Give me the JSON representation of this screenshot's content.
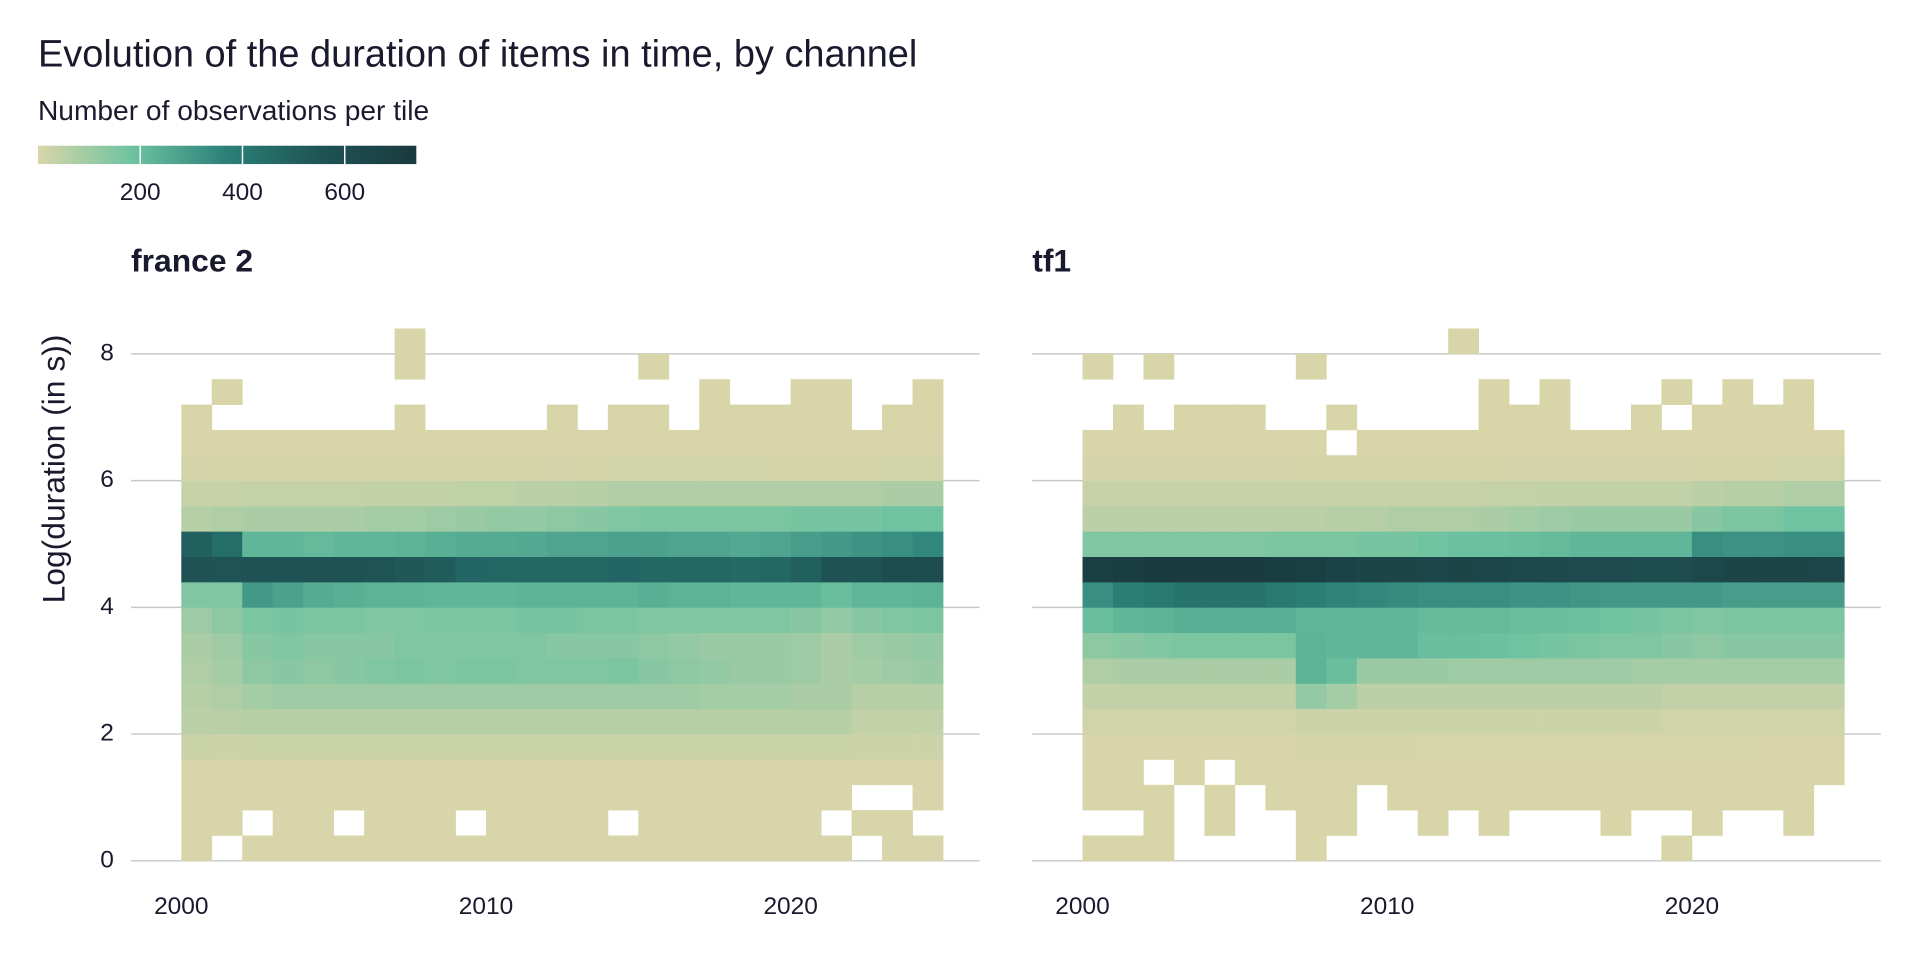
{
  "chart_data": {
    "type": "heatmap",
    "title": "Evolution of the duration of items in time, by channel",
    "legend_title": "Number of observations per tile",
    "color_scale": {
      "colors": [
        "#d9d5a9",
        "#6dc3a0",
        "#2a8078",
        "#1f5356",
        "#193a3e"
      ],
      "clim": [
        0,
        740
      ],
      "ticks": [
        200,
        400,
        600
      ]
    },
    "y_label": "Log(duration (in s))",
    "xlim": [
      1998.35,
      2026.2
    ],
    "xticks": [
      2000,
      2010,
      2020
    ],
    "ylim": [
      0,
      8.5
    ],
    "yticks": [
      0,
      2,
      4,
      6,
      8
    ],
    "grid": true,
    "x_bins": [
      2000,
      2001,
      2002,
      2003,
      2004,
      2005,
      2006,
      2007,
      2008,
      2009,
      2010,
      2011,
      2012,
      2013,
      2014,
      2015,
      2016,
      2017,
      2018,
      2019,
      2020,
      2021,
      2022,
      2023,
      2024,
      2025
    ],
    "y_bins": [
      0,
      0.4,
      0.8,
      1.2,
      1.6,
      2,
      2.4,
      2.8,
      3.2,
      3.6,
      4,
      4.4,
      4.8,
      5.2,
      5.6,
      6,
      6.4,
      6.8,
      7.2,
      7.6,
      8,
      8.4
    ],
    "facets": [
      {
        "name": "france 2",
        "z": [
          [
            3,
            null,
            3,
            3,
            3,
            3,
            3,
            3,
            3,
            3,
            3,
            3,
            3,
            3,
            3,
            3,
            3,
            3,
            3,
            3,
            3,
            3,
            null,
            3,
            3
          ],
          [
            3,
            3,
            null,
            3,
            3,
            null,
            3,
            3,
            3,
            null,
            3,
            3,
            3,
            3,
            null,
            3,
            3,
            3,
            3,
            3,
            3,
            null,
            3,
            3,
            null
          ],
          [
            3,
            3,
            3,
            3,
            3,
            3,
            3,
            3,
            3,
            3,
            3,
            3,
            3,
            3,
            3,
            3,
            3,
            3,
            3,
            3,
            3,
            3,
            null,
            null,
            3
          ],
          [
            4,
            4,
            4,
            4,
            4,
            4,
            4,
            4,
            4,
            4,
            4,
            4,
            4,
            4,
            4,
            4,
            4,
            4,
            4,
            4,
            4,
            4,
            4,
            4,
            4
          ],
          [
            25,
            20,
            25,
            25,
            25,
            25,
            25,
            25,
            25,
            25,
            25,
            25,
            25,
            25,
            25,
            25,
            25,
            25,
            25,
            25,
            25,
            25,
            20,
            20,
            20
          ],
          [
            50,
            55,
            60,
            60,
            60,
            60,
            60,
            60,
            60,
            60,
            60,
            60,
            60,
            60,
            60,
            60,
            60,
            60,
            60,
            60,
            60,
            60,
            40,
            40,
            40
          ],
          [
            60,
            70,
            90,
            100,
            100,
            100,
            100,
            100,
            100,
            100,
            100,
            100,
            100,
            100,
            100,
            100,
            100,
            90,
            90,
            90,
            80,
            80,
            60,
            60,
            60
          ],
          [
            70,
            90,
            130,
            140,
            130,
            140,
            150,
            160,
            150,
            160,
            160,
            150,
            150,
            150,
            160,
            140,
            130,
            120,
            110,
            110,
            100,
            80,
            90,
            100,
            110
          ],
          [
            80,
            100,
            140,
            150,
            140,
            140,
            140,
            150,
            150,
            150,
            150,
            150,
            140,
            140,
            140,
            130,
            120,
            110,
            110,
            110,
            100,
            80,
            100,
            110,
            120
          ],
          [
            100,
            130,
            160,
            170,
            160,
            160,
            150,
            150,
            160,
            160,
            160,
            170,
            170,
            160,
            160,
            150,
            150,
            150,
            150,
            150,
            140,
            120,
            140,
            150,
            160
          ],
          [
            150,
            150,
            300,
            280,
            250,
            240,
            230,
            230,
            220,
            220,
            220,
            230,
            230,
            230,
            230,
            240,
            230,
            230,
            220,
            220,
            220,
            200,
            220,
            220,
            230
          ],
          [
            560,
            550,
            560,
            560,
            560,
            560,
            550,
            540,
            520,
            480,
            470,
            470,
            470,
            470,
            480,
            470,
            470,
            470,
            460,
            470,
            500,
            560,
            560,
            600,
            600
          ],
          [
            500,
            450,
            220,
            220,
            210,
            220,
            220,
            230,
            240,
            250,
            250,
            260,
            270,
            270,
            280,
            280,
            270,
            270,
            260,
            270,
            290,
            300,
            320,
            330,
            350
          ],
          [
            60,
            70,
            80,
            80,
            80,
            80,
            90,
            90,
            100,
            110,
            120,
            120,
            130,
            140,
            150,
            160,
            160,
            160,
            160,
            160,
            170,
            170,
            170,
            180,
            180
          ],
          [
            30,
            30,
            35,
            35,
            35,
            35,
            40,
            40,
            40,
            45,
            45,
            50,
            55,
            60,
            70,
            70,
            70,
            70,
            70,
            70,
            70,
            70,
            70,
            80,
            80
          ],
          [
            10,
            8,
            8,
            8,
            6,
            6,
            6,
            6,
            6,
            6,
            8,
            8,
            10,
            12,
            14,
            14,
            14,
            14,
            14,
            12,
            12,
            12,
            12,
            14,
            14
          ],
          [
            3,
            3,
            2,
            1,
            2,
            1,
            1,
            1,
            1,
            1,
            2,
            2,
            2,
            3,
            3,
            3,
            3,
            3,
            3,
            3,
            2,
            2,
            3,
            3,
            3
          ],
          [
            1,
            null,
            null,
            null,
            null,
            null,
            null,
            1,
            null,
            null,
            null,
            null,
            1,
            null,
            1,
            1,
            null,
            1,
            1,
            1,
            1,
            1,
            null,
            1,
            1
          ],
          [
            null,
            1,
            null,
            null,
            null,
            null,
            null,
            null,
            null,
            null,
            null,
            null,
            null,
            null,
            null,
            null,
            null,
            1,
            null,
            null,
            1,
            1,
            null,
            null,
            1
          ],
          [
            null,
            null,
            null,
            null,
            null,
            null,
            null,
            1,
            null,
            null,
            null,
            null,
            null,
            null,
            null,
            1,
            null,
            null,
            null,
            null,
            null,
            null,
            null,
            null,
            null
          ],
          [
            null,
            null,
            null,
            null,
            null,
            null,
            null,
            1,
            null,
            null,
            null,
            null,
            null,
            null,
            null,
            null,
            null,
            null,
            null,
            null,
            null,
            null,
            null,
            null,
            null
          ]
        ]
      },
      {
        "name": "tf1",
        "z": [
          [
            2,
            2,
            2,
            null,
            null,
            null,
            null,
            2,
            null,
            null,
            null,
            null,
            null,
            null,
            null,
            null,
            null,
            null,
            null,
            1,
            null,
            null,
            null,
            null,
            null
          ],
          [
            null,
            null,
            1,
            null,
            1,
            null,
            null,
            1,
            1,
            null,
            null,
            1,
            null,
            1,
            null,
            null,
            null,
            1,
            null,
            null,
            1,
            null,
            null,
            1,
            null
          ],
          [
            1,
            1,
            1,
            null,
            1,
            null,
            1,
            1,
            1,
            null,
            1,
            1,
            1,
            1,
            1,
            1,
            1,
            1,
            1,
            1,
            1,
            1,
            1,
            1,
            null
          ],
          [
            2,
            1,
            null,
            1,
            null,
            1,
            1,
            2,
            2,
            1,
            1,
            2,
            1,
            1,
            1,
            2,
            1,
            1,
            2,
            1,
            1,
            1,
            2,
            1,
            1
          ],
          [
            4,
            4,
            4,
            4,
            4,
            4,
            4,
            6,
            6,
            6,
            6,
            5,
            5,
            5,
            5,
            5,
            5,
            5,
            5,
            5,
            5,
            5,
            4,
            4,
            4
          ],
          [
            15,
            15,
            15,
            15,
            15,
            15,
            15,
            20,
            20,
            20,
            20,
            20,
            20,
            20,
            20,
            20,
            20,
            20,
            20,
            15,
            15,
            15,
            15,
            15,
            15
          ],
          [
            40,
            40,
            40,
            40,
            40,
            40,
            40,
            120,
            90,
            50,
            50,
            50,
            50,
            50,
            50,
            50,
            50,
            50,
            50,
            40,
            40,
            40,
            40,
            40,
            40
          ],
          [
            70,
            80,
            80,
            80,
            80,
            80,
            80,
            230,
            200,
            110,
            110,
            110,
            100,
            100,
            100,
            100,
            100,
            100,
            90,
            90,
            90,
            90,
            90,
            90,
            90
          ],
          [
            130,
            140,
            150,
            160,
            160,
            160,
            160,
            230,
            220,
            220,
            220,
            200,
            200,
            190,
            180,
            170,
            160,
            150,
            150,
            140,
            130,
            140,
            140,
            140,
            140
          ],
          [
            200,
            220,
            230,
            240,
            240,
            240,
            240,
            220,
            220,
            220,
            220,
            210,
            210,
            210,
            200,
            200,
            190,
            180,
            170,
            160,
            150,
            160,
            160,
            160,
            160
          ],
          [
            330,
            380,
            400,
            420,
            420,
            420,
            400,
            380,
            360,
            350,
            340,
            330,
            330,
            330,
            320,
            320,
            310,
            300,
            300,
            300,
            300,
            290,
            290,
            290,
            290
          ],
          [
            700,
            720,
            740,
            740,
            740,
            740,
            720,
            700,
            680,
            660,
            660,
            650,
            660,
            650,
            640,
            630,
            620,
            620,
            600,
            600,
            640,
            660,
            660,
            660,
            650
          ],
          [
            150,
            150,
            150,
            150,
            150,
            150,
            160,
            160,
            160,
            170,
            170,
            180,
            190,
            190,
            200,
            210,
            220,
            220,
            220,
            220,
            330,
            320,
            320,
            330,
            330
          ],
          [
            50,
            50,
            50,
            50,
            50,
            50,
            50,
            50,
            60,
            60,
            70,
            70,
            70,
            80,
            90,
            100,
            110,
            110,
            110,
            110,
            140,
            160,
            160,
            180,
            180
          ],
          [
            30,
            30,
            30,
            30,
            30,
            30,
            30,
            30,
            30,
            30,
            30,
            30,
            30,
            35,
            35,
            40,
            40,
            40,
            40,
            40,
            50,
            60,
            60,
            70,
            70
          ],
          [
            10,
            10,
            10,
            10,
            10,
            10,
            10,
            8,
            8,
            8,
            8,
            8,
            8,
            8,
            10,
            10,
            10,
            10,
            10,
            10,
            12,
            12,
            12,
            14,
            14
          ],
          [
            2,
            2,
            1,
            1,
            1,
            1,
            2,
            1,
            null,
            1,
            1,
            1,
            1,
            1,
            1,
            1,
            1,
            1,
            1,
            1,
            2,
            2,
            2,
            2,
            2
          ],
          [
            null,
            1,
            null,
            1,
            1,
            1,
            null,
            null,
            1,
            null,
            null,
            null,
            null,
            1,
            1,
            1,
            null,
            null,
            1,
            null,
            1,
            1,
            1,
            1,
            null
          ],
          [
            null,
            null,
            null,
            null,
            null,
            null,
            null,
            null,
            null,
            null,
            null,
            null,
            null,
            1,
            null,
            1,
            null,
            null,
            null,
            1,
            null,
            1,
            null,
            1,
            null
          ],
          [
            1,
            null,
            1,
            null,
            null,
            null,
            null,
            1,
            null,
            null,
            null,
            null,
            null,
            null,
            null,
            null,
            null,
            null,
            null,
            null,
            null,
            null,
            null,
            null,
            null
          ],
          [
            null,
            null,
            null,
            null,
            null,
            null,
            null,
            null,
            null,
            null,
            null,
            null,
            1,
            null,
            null,
            null,
            null,
            null,
            null,
            null,
            null,
            null,
            null,
            null,
            null
          ]
        ]
      }
    ]
  }
}
